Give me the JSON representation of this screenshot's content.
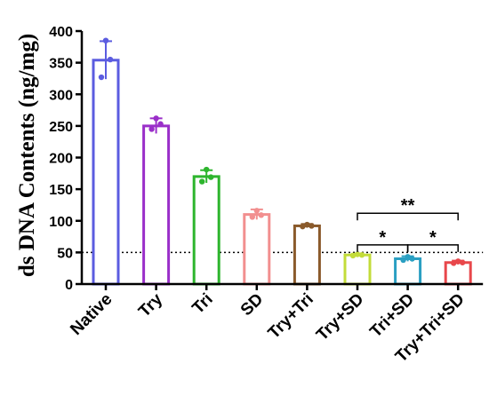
{
  "chart_data": {
    "type": "bar",
    "title": "",
    "xlabel": "",
    "ylabel": "ds DNA Contents (ng/mg)",
    "ylim": [
      0,
      400
    ],
    "yticks": [
      0,
      50,
      100,
      150,
      200,
      250,
      300,
      350,
      400
    ],
    "reference_line": 50,
    "grid": false,
    "legend": "none",
    "categories": [
      "Native",
      "Try",
      "Tri",
      "SD",
      "Try+Tri",
      "Try+SD",
      "Tri+SD",
      "Try+Tri+SD"
    ],
    "values": [
      354,
      250,
      170,
      110,
      92,
      46,
      40,
      34
    ],
    "errors": [
      30,
      12,
      10,
      8,
      3,
      2,
      4,
      3
    ],
    "points": [
      [
        385,
        355,
        327
      ],
      [
        262,
        253,
        245
      ],
      [
        181,
        169,
        162
      ],
      [
        116,
        109,
        106
      ],
      [
        94,
        92,
        91
      ],
      [
        47,
        46,
        45
      ],
      [
        43,
        40,
        38
      ],
      [
        36,
        34,
        33
      ]
    ],
    "colors": [
      "#5b5ce0",
      "#9a2fc9",
      "#2db52d",
      "#f28f8f",
      "#8a5a2b",
      "#c3dc3a",
      "#2a9fc2",
      "#e8474b"
    ],
    "significance": [
      {
        "from": "Try+SD",
        "to": "Tri+SD",
        "label": "*",
        "y": 62
      },
      {
        "from": "Tri+SD",
        "to": "Try+Tri+SD",
        "label": "*",
        "y": 62
      },
      {
        "from": "Try+SD",
        "to": "Try+Tri+SD",
        "label": "**",
        "y": 112
      }
    ]
  }
}
